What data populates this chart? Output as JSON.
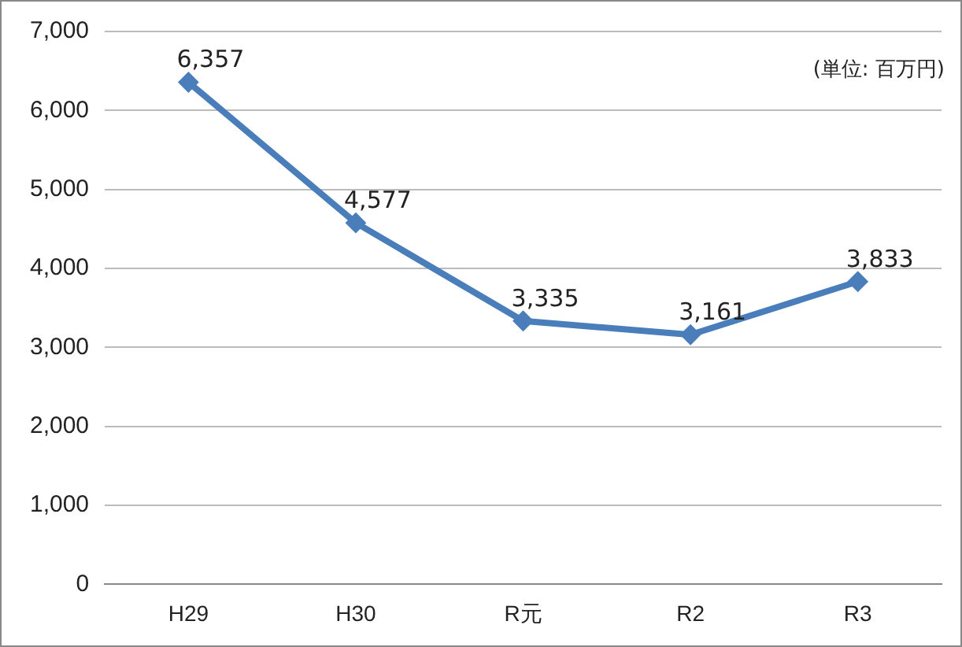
{
  "chart_data": {
    "type": "line",
    "categories": [
      "H29",
      "H30",
      "R元",
      "R2",
      "R3"
    ],
    "series": [
      {
        "color": "#4a7ebb",
        "values": [
          6357,
          4577,
          3335,
          3161,
          3833
        ],
        "value_labels": [
          "6,357",
          "4,577",
          "3,335",
          "3,161",
          "3,833"
        ]
      }
    ],
    "ylim": [
      0,
      7000
    ],
    "yticks": [
      {
        "value": 0,
        "label": "0"
      },
      {
        "value": 1000,
        "label": "1,000"
      },
      {
        "value": 2000,
        "label": "2,000"
      },
      {
        "value": 3000,
        "label": "3,000"
      },
      {
        "value": 4000,
        "label": "4,000"
      },
      {
        "value": 5000,
        "label": "5,000"
      },
      {
        "value": 6000,
        "label": "6,000"
      },
      {
        "value": 7000,
        "label": "7,000"
      }
    ],
    "grid": "y",
    "marker": "diamond",
    "line_style": "solid",
    "legend": false,
    "annotations": [
      "(単位: 百万円)"
    ]
  }
}
